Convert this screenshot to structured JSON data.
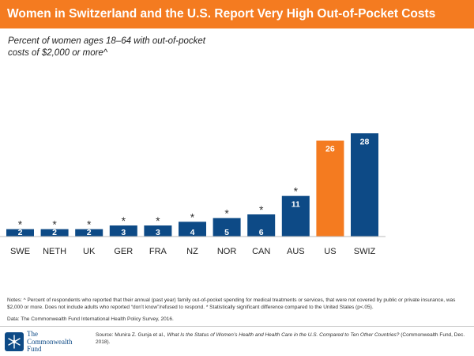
{
  "header": {
    "title": "Women in Switzerland and the U.S. Report Very High Out-of-Pocket Costs"
  },
  "colors": {
    "header_bg": "#f47b20",
    "bar_default": "#0d4a86",
    "bar_highlight": "#f47b20"
  },
  "chart_data": {
    "type": "bar",
    "title": "Percent of women ages 18–64 with out-of-pocket costs of $2,000 or more^",
    "categories": [
      "SWE",
      "NETH",
      "UK",
      "GER",
      "FRA",
      "NZ",
      "NOR",
      "CAN",
      "AUS",
      "US",
      "SWIZ"
    ],
    "values": [
      2,
      2,
      2,
      3,
      3,
      4,
      5,
      6,
      11,
      26,
      28
    ],
    "significant": [
      true,
      true,
      true,
      true,
      true,
      true,
      true,
      true,
      true,
      false,
      false
    ],
    "highlight": [
      "US"
    ],
    "significance_marker": "*",
    "xlabel": "",
    "ylabel": "",
    "ylim": [
      0,
      30
    ],
    "grid": false,
    "legend": "none"
  },
  "notes": {
    "text": "Notes: ^ Percent of respondents who reported that their annual (past year) family out-of-pocket spending for medical treatments or services, that were not covered by public or private insurance, was $2,000 or more. Does not include adults who reported “don’t know”/refused to respond. * Statistically significant difference compared to the United States (p<.05).",
    "data_source": "Data: The Commonwealth Fund International Health Policy Survey, 2016."
  },
  "footer": {
    "logo_line1": "The",
    "logo_line2": "Commonwealth",
    "logo_line3": "Fund",
    "logo_icon": "snowflake-seal-icon",
    "source_prefix": "Source: Munira Z. Gunja et al., ",
    "source_title": "What Is the Status of Women’s Health and Health Care in the U.S. Compared to Ten Other Countries?",
    "source_suffix": " (Commonwealth Fund, Dec. 2018)."
  }
}
